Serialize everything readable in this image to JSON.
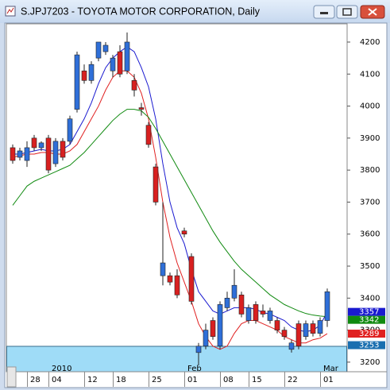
{
  "chart_data": {
    "type": "candlestick",
    "title": "S.JPJ7203 - TOYOTA MOTOR CORPORATION, Daily",
    "categories": [
      null,
      null,
      "28",
      null,
      null,
      "04",
      null,
      null,
      null,
      null,
      "12",
      null,
      null,
      null,
      "18",
      null,
      null,
      null,
      null,
      "25",
      null,
      null,
      null,
      null,
      "01",
      null,
      null,
      null,
      null,
      "08",
      null,
      null,
      null,
      "15",
      null,
      null,
      null,
      null,
      "22",
      null,
      null,
      null,
      null,
      "01",
      null
    ],
    "period_labels": [
      null,
      null,
      null,
      null,
      null,
      "2010",
      null,
      null,
      null,
      null,
      null,
      null,
      null,
      null,
      null,
      null,
      null,
      null,
      null,
      null,
      null,
      null,
      null,
      null,
      "Feb",
      null,
      null,
      null,
      null,
      null,
      null,
      null,
      null,
      null,
      null,
      null,
      null,
      null,
      null,
      null,
      null,
      null,
      null,
      "Mar",
      null
    ],
    "open": [
      3870,
      3840,
      3830,
      3900,
      3870,
      3900,
      3820,
      3890,
      3890,
      3990,
      4110,
      4080,
      4150,
      4170,
      4110,
      4170,
      4110,
      4080,
      3995,
      3940,
      3810,
      3470,
      3470,
      3470,
      3610,
      3530,
      3230,
      3250,
      3330,
      3250,
      3370,
      3400,
      3410,
      3330,
      3380,
      3360,
      3330,
      3330,
      3300,
      3240,
      3320,
      3280,
      3320,
      3290,
      3330
    ],
    "high": [
      3880,
      3870,
      3890,
      3910,
      3890,
      3910,
      3900,
      3900,
      3970,
      4170,
      4130,
      4140,
      4200,
      4200,
      4160,
      4190,
      4230,
      4100,
      4010,
      3950,
      3820,
      3700,
      3480,
      3490,
      3620,
      3540,
      3260,
      3320,
      3340,
      3390,
      3420,
      3490,
      3420,
      3380,
      3390,
      3380,
      3370,
      3340,
      3310,
      3270,
      3330,
      3330,
      3330,
      3340,
      3430
    ],
    "low": [
      3820,
      3830,
      3810,
      3860,
      3860,
      3790,
      3810,
      3830,
      3880,
      3980,
      4070,
      4070,
      4140,
      4160,
      4090,
      4090,
      4100,
      4030,
      3970,
      3870,
      3690,
      3440,
      3440,
      3400,
      3590,
      3380,
      3190,
      3240,
      3270,
      3240,
      3360,
      3390,
      3340,
      3320,
      3320,
      3340,
      3320,
      3290,
      3270,
      3230,
      3240,
      3270,
      3280,
      3280,
      3310
    ],
    "close": [
      3830,
      3860,
      3870,
      3870,
      3885,
      3800,
      3890,
      3840,
      3960,
      4160,
      4080,
      4130,
      4200,
      4190,
      4150,
      4100,
      4200,
      4050,
      3990,
      3880,
      3700,
      3510,
      3450,
      3410,
      3600,
      3390,
      3250,
      3300,
      3280,
      3380,
      3400,
      3440,
      3350,
      3370,
      3330,
      3350,
      3360,
      3300,
      3280,
      3260,
      3250,
      3320,
      3290,
      3330,
      3420
    ],
    "up_color": "#2f6fd8",
    "down_color": "#d82020",
    "series": [
      {
        "color": "#1a1ad0",
        "values": [
          3850,
          3850,
          3855,
          3860,
          3865,
          3860,
          3860,
          3865,
          3880,
          3920,
          3960,
          4010,
          4070,
          4120,
          4150,
          4170,
          4185,
          4170,
          4120,
          4060,
          3960,
          3820,
          3700,
          3620,
          3570,
          3490,
          3420,
          3390,
          3360,
          3350,
          3360,
          3370,
          3370,
          3370,
          3365,
          3355,
          3350,
          3340,
          3330,
          3310,
          3300,
          3295,
          3300,
          3315,
          3357
        ]
      },
      {
        "color": "#e02020",
        "values": [
          3840,
          3845,
          3850,
          3850,
          3855,
          3855,
          3850,
          3850,
          3860,
          3880,
          3920,
          3960,
          4000,
          4050,
          4090,
          4110,
          4110,
          4090,
          4040,
          3960,
          3840,
          3700,
          3590,
          3510,
          3450,
          3390,
          3320,
          3280,
          3250,
          3240,
          3250,
          3290,
          3320,
          3330,
          3330,
          3320,
          3310,
          3300,
          3280,
          3270,
          3260,
          3260,
          3270,
          3275,
          3289
        ]
      },
      {
        "color": "#108a10",
        "values": [
          3690,
          3720,
          3750,
          3765,
          3775,
          3785,
          3795,
          3805,
          3815,
          3835,
          3855,
          3880,
          3905,
          3930,
          3955,
          3975,
          3990,
          3990,
          3985,
          3965,
          3930,
          3890,
          3850,
          3810,
          3770,
          3730,
          3690,
          3650,
          3610,
          3575,
          3545,
          3515,
          3490,
          3470,
          3450,
          3430,
          3410,
          3395,
          3380,
          3370,
          3360,
          3352,
          3347,
          3344,
          3342
        ]
      }
    ],
    "price_labels": [
      {
        "value": 3357,
        "color": "#1a1ad0"
      },
      {
        "value": 3342,
        "color": "#108a10"
      },
      {
        "value": 3289,
        "color": "#e02020"
      },
      {
        "value": 3253,
        "color": "#1a6fb0"
      }
    ],
    "ylim": [
      3170,
      4257
    ],
    "yticks": [
      3200,
      3300,
      3400,
      3500,
      3600,
      3700,
      3800,
      3900,
      4000,
      4100,
      4200
    ]
  }
}
